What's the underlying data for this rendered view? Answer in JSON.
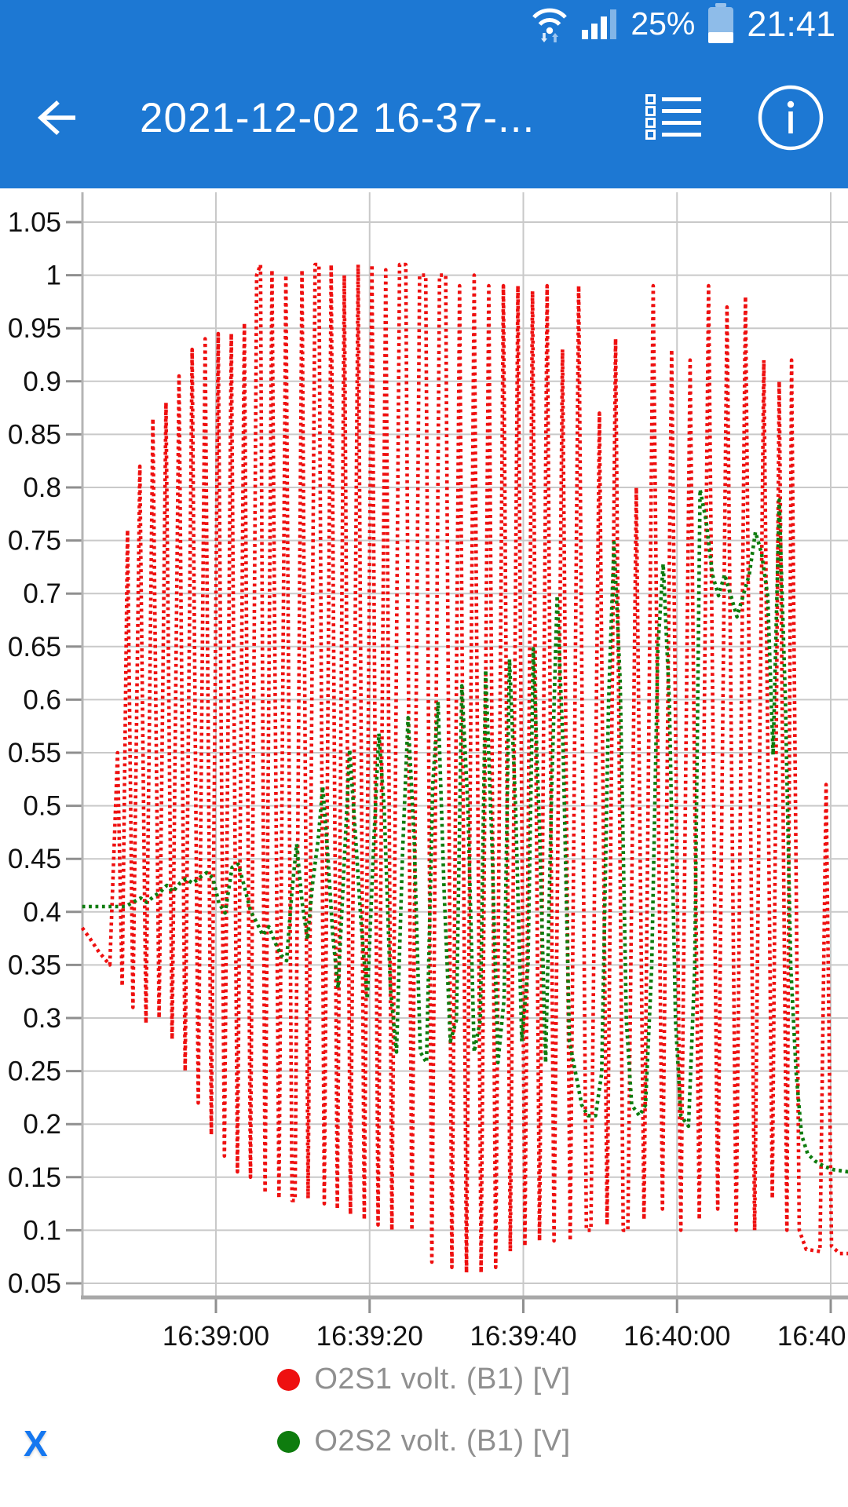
{
  "colors": {
    "app_bar_blue": "#1d78d3",
    "accent_blue": "#1577f0",
    "grid_line": "#c9c9c9",
    "axis_line": "#a8a8a8",
    "tick_mark": "#8f8f8f",
    "tick_text": "#111111",
    "legend_text": "#8f8f8f"
  },
  "status_bar": {
    "battery_percent": "25%",
    "time": "21:41",
    "icons": [
      "wifi-with-activity-arrows",
      "cellular-signal",
      "battery-vertical-low"
    ]
  },
  "app_bar": {
    "title": "2021-12-02 16-37-...",
    "icons": [
      "back-arrow",
      "record-list",
      "info-circle"
    ]
  },
  "chart_data": {
    "type": "line",
    "title": "",
    "xlabel": "",
    "ylabel": "",
    "x_ticks": [
      "16:39:00",
      "16:39:20",
      "16:39:40",
      "16:40:00",
      "16:40:20"
    ],
    "x_tick_seconds": [
      20,
      40,
      60,
      80,
      100
    ],
    "x_range_seconds": [
      2.6,
      102.3
    ],
    "ylim": [
      0.05,
      1.05
    ],
    "y_tick_step": 0.05,
    "grid": true,
    "legend_position": "bottom",
    "line_style": "dotted",
    "series": [
      {
        "name": "O2S1 volt. (B1) [V]",
        "color": "#ee1010",
        "points": [
          [
            2.6,
            0.385
          ],
          [
            3.6,
            0.375
          ],
          [
            4.8,
            0.362
          ],
          [
            6.2,
            0.35
          ],
          [
            7.2,
            0.55
          ],
          [
            7.8,
            0.33
          ],
          [
            8.5,
            0.76
          ],
          [
            9.2,
            0.31
          ],
          [
            10.1,
            0.82
          ],
          [
            10.9,
            0.295
          ],
          [
            11.8,
            0.865
          ],
          [
            12.6,
            0.3
          ],
          [
            13.5,
            0.88
          ],
          [
            14.3,
            0.28
          ],
          [
            15.2,
            0.905
          ],
          [
            16.0,
            0.25
          ],
          [
            16.9,
            0.93
          ],
          [
            17.7,
            0.22
          ],
          [
            18.6,
            0.94
          ],
          [
            19.4,
            0.19
          ],
          [
            20.3,
            0.945
          ],
          [
            21.1,
            0.17
          ],
          [
            22.0,
            0.945
          ],
          [
            22.8,
            0.155
          ],
          [
            23.7,
            0.955
          ],
          [
            24.5,
            0.15
          ],
          [
            25.3,
            1.0
          ],
          [
            25.8,
            1.01
          ],
          [
            26.4,
            0.135
          ],
          [
            27.3,
            1.005
          ],
          [
            28.2,
            0.13
          ],
          [
            29.1,
            1.0
          ],
          [
            29.9,
            0.128
          ],
          [
            30.3,
            0.128
          ],
          [
            31.2,
            1.005
          ],
          [
            32.0,
            0.13
          ],
          [
            32.9,
            1.01
          ],
          [
            33.4,
            1.01
          ],
          [
            34.1,
            0.125
          ],
          [
            35.0,
            1.01
          ],
          [
            35.8,
            0.12
          ],
          [
            36.7,
            1.0
          ],
          [
            37.5,
            0.115
          ],
          [
            38.5,
            1.01
          ],
          [
            39.3,
            0.11
          ],
          [
            40.3,
            1.01
          ],
          [
            41.1,
            0.105
          ],
          [
            42.1,
            1.005
          ],
          [
            42.9,
            0.1
          ],
          [
            43.9,
            1.01
          ],
          [
            44.7,
            1.01
          ],
          [
            45.5,
            0.1
          ],
          [
            46.5,
            1.0
          ],
          [
            47.3,
            1.0
          ],
          [
            48.1,
            0.07
          ],
          [
            49.1,
            1.0
          ],
          [
            49.9,
            1.0
          ],
          [
            50.7,
            0.065
          ],
          [
            51.7,
            0.99
          ],
          [
            52.6,
            0.06
          ],
          [
            53.6,
            1.0
          ],
          [
            54.5,
            0.06
          ],
          [
            55.5,
            0.99
          ],
          [
            56.4,
            0.065
          ],
          [
            57.4,
            0.99
          ],
          [
            58.3,
            0.08
          ],
          [
            59.3,
            0.99
          ],
          [
            60.2,
            0.085
          ],
          [
            61.2,
            0.985
          ],
          [
            62.1,
            0.09
          ],
          [
            63.1,
            0.99
          ],
          [
            64.0,
            0.09
          ],
          [
            65.1,
            0.93
          ],
          [
            66.1,
            0.09
          ],
          [
            67.2,
            0.99
          ],
          [
            68.2,
            0.1
          ],
          [
            68.8,
            0.1
          ],
          [
            69.9,
            0.87
          ],
          [
            70.9,
            0.105
          ],
          [
            72.0,
            0.94
          ],
          [
            73.0,
            0.1
          ],
          [
            73.6,
            0.1
          ],
          [
            74.7,
            0.8
          ],
          [
            75.7,
            0.11
          ],
          [
            76.9,
            0.99
          ],
          [
            78.1,
            0.12
          ],
          [
            79.3,
            0.93
          ],
          [
            80.5,
            0.1
          ],
          [
            81.7,
            0.92
          ],
          [
            82.9,
            0.11
          ],
          [
            84.1,
            0.99
          ],
          [
            85.3,
            0.12
          ],
          [
            86.5,
            0.97
          ],
          [
            87.7,
            0.1
          ],
          [
            88.9,
            0.98
          ],
          [
            90.1,
            0.1
          ],
          [
            91.3,
            0.92
          ],
          [
            92.4,
            0.13
          ],
          [
            93.3,
            0.9
          ],
          [
            94.3,
            0.1
          ],
          [
            94.9,
            0.92
          ],
          [
            95.9,
            0.1
          ],
          [
            96.8,
            0.082
          ],
          [
            98.6,
            0.08
          ],
          [
            99.4,
            0.52
          ],
          [
            100.1,
            0.085
          ],
          [
            101.2,
            0.078
          ],
          [
            102.3,
            0.078
          ]
        ]
      },
      {
        "name": "O2S2 volt. (B1) [V]",
        "color": "#0e7c0e",
        "points": [
          [
            2.6,
            0.405
          ],
          [
            4.5,
            0.405
          ],
          [
            6.5,
            0.405
          ],
          [
            8.2,
            0.405
          ],
          [
            9.2,
            0.409
          ],
          [
            10.2,
            0.413
          ],
          [
            11.0,
            0.409
          ],
          [
            12.0,
            0.415
          ],
          [
            12.8,
            0.419
          ],
          [
            13.6,
            0.425
          ],
          [
            14.4,
            0.419
          ],
          [
            15.3,
            0.427
          ],
          [
            16.1,
            0.431
          ],
          [
            17.0,
            0.427
          ],
          [
            17.8,
            0.432
          ],
          [
            18.8,
            0.437
          ],
          [
            19.6,
            0.432
          ],
          [
            20.4,
            0.408
          ],
          [
            21.2,
            0.399
          ],
          [
            22.1,
            0.442
          ],
          [
            22.9,
            0.445
          ],
          [
            23.7,
            0.424
          ],
          [
            24.5,
            0.401
          ],
          [
            25.3,
            0.39
          ],
          [
            26.1,
            0.378
          ],
          [
            26.9,
            0.386
          ],
          [
            27.7,
            0.371
          ],
          [
            28.5,
            0.359
          ],
          [
            29.2,
            0.354
          ],
          [
            29.9,
            0.42
          ],
          [
            30.5,
            0.464
          ],
          [
            31.2,
            0.41
          ],
          [
            31.9,
            0.374
          ],
          [
            32.6,
            0.428
          ],
          [
            33.3,
            0.468
          ],
          [
            33.9,
            0.518
          ],
          [
            34.5,
            0.46
          ],
          [
            35.2,
            0.378
          ],
          [
            35.9,
            0.328
          ],
          [
            36.7,
            0.448
          ],
          [
            37.4,
            0.553
          ],
          [
            38.1,
            0.478
          ],
          [
            38.9,
            0.388
          ],
          [
            39.7,
            0.318
          ],
          [
            40.5,
            0.458
          ],
          [
            41.2,
            0.568
          ],
          [
            41.9,
            0.498
          ],
          [
            42.7,
            0.328
          ],
          [
            43.5,
            0.268
          ],
          [
            44.3,
            0.458
          ],
          [
            45.0,
            0.583
          ],
          [
            45.8,
            0.468
          ],
          [
            46.6,
            0.268
          ],
          [
            47.4,
            0.258
          ],
          [
            48.2,
            0.518
          ],
          [
            48.9,
            0.598
          ],
          [
            49.7,
            0.418
          ],
          [
            50.5,
            0.278
          ],
          [
            51.3,
            0.298
          ],
          [
            52.0,
            0.613
          ],
          [
            52.8,
            0.498
          ],
          [
            53.6,
            0.268
          ],
          [
            54.4,
            0.298
          ],
          [
            55.1,
            0.628
          ],
          [
            55.9,
            0.468
          ],
          [
            56.7,
            0.258
          ],
          [
            57.5,
            0.318
          ],
          [
            58.2,
            0.638
          ],
          [
            59.0,
            0.498
          ],
          [
            59.8,
            0.278
          ],
          [
            60.6,
            0.348
          ],
          [
            61.3,
            0.648
          ],
          [
            62.1,
            0.478
          ],
          [
            62.9,
            0.258
          ],
          [
            63.7,
            0.518
          ],
          [
            64.4,
            0.698
          ],
          [
            65.2,
            0.548
          ],
          [
            66.0,
            0.278
          ],
          [
            66.8,
            0.248
          ],
          [
            67.6,
            0.218
          ],
          [
            68.4,
            0.208
          ],
          [
            69.4,
            0.208
          ],
          [
            70.2,
            0.248
          ],
          [
            71.1,
            0.598
          ],
          [
            71.8,
            0.748
          ],
          [
            72.6,
            0.618
          ],
          [
            73.4,
            0.298
          ],
          [
            74.1,
            0.218
          ],
          [
            75.1,
            0.208
          ],
          [
            75.9,
            0.218
          ],
          [
            76.7,
            0.348
          ],
          [
            77.5,
            0.648
          ],
          [
            78.2,
            0.728
          ],
          [
            79.0,
            0.598
          ],
          [
            79.8,
            0.298
          ],
          [
            80.5,
            0.208
          ],
          [
            81.5,
            0.198
          ],
          [
            82.3,
            0.348
          ],
          [
            83.0,
            0.798
          ],
          [
            83.8,
            0.768
          ],
          [
            84.6,
            0.718
          ],
          [
            85.4,
            0.698
          ],
          [
            86.2,
            0.718
          ],
          [
            87.0,
            0.698
          ],
          [
            87.8,
            0.678
          ],
          [
            88.6,
            0.698
          ],
          [
            89.4,
            0.718
          ],
          [
            90.2,
            0.758
          ],
          [
            91.0,
            0.738
          ],
          [
            91.8,
            0.698
          ],
          [
            92.5,
            0.548
          ],
          [
            93.3,
            0.788
          ],
          [
            94.1,
            0.598
          ],
          [
            94.8,
            0.348
          ],
          [
            95.5,
            0.248
          ],
          [
            96.2,
            0.19
          ],
          [
            97.0,
            0.172
          ],
          [
            98.0,
            0.165
          ],
          [
            99.2,
            0.16
          ],
          [
            100.4,
            0.157
          ],
          [
            101.4,
            0.156
          ],
          [
            102.3,
            0.155
          ]
        ]
      }
    ]
  },
  "footer": {
    "close_label": "X"
  }
}
